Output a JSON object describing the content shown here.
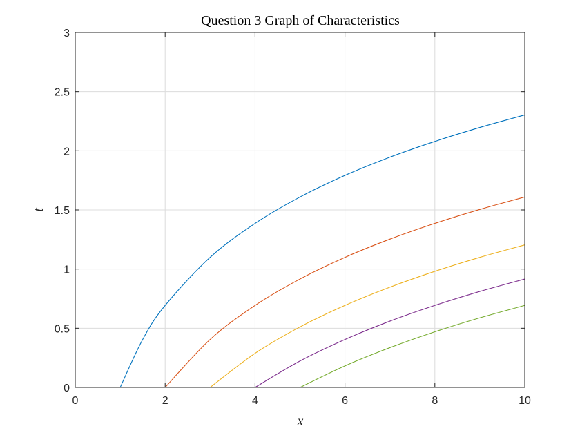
{
  "chart_data": {
    "type": "line",
    "title": "Question 3 Graph of Characteristics",
    "xlabel": "x",
    "ylabel": "t",
    "xlim": [
      0,
      10
    ],
    "ylim": [
      0,
      3
    ],
    "xticks": [
      "0",
      "2",
      "4",
      "6",
      "8",
      "10"
    ],
    "yticks": [
      "0",
      "0.5",
      "1",
      "1.5",
      "2",
      "2.5",
      "3"
    ],
    "grid": true,
    "colors": [
      "#0072bd",
      "#d95319",
      "#edb120",
      "#7e2f8e",
      "#77ac30"
    ],
    "series": [
      {
        "x": [
          1,
          1.5,
          2,
          3,
          4,
          5,
          6,
          7,
          8,
          9,
          10
        ],
        "y": [
          0,
          0.405,
          0.693,
          1.099,
          1.386,
          1.609,
          1.792,
          1.946,
          2.079,
          2.197,
          2.303
        ]
      },
      {
        "x": [
          2,
          3,
          4,
          5,
          6,
          7,
          8,
          9,
          10
        ],
        "y": [
          0,
          0.405,
          0.693,
          0.916,
          1.099,
          1.253,
          1.386,
          1.504,
          1.609
        ]
      },
      {
        "x": [
          3,
          4,
          5,
          6,
          7,
          8,
          9,
          10
        ],
        "y": [
          0,
          0.288,
          0.511,
          0.693,
          0.847,
          0.981,
          1.099,
          1.204
        ]
      },
      {
        "x": [
          4,
          5,
          6,
          7,
          8,
          9,
          10
        ],
        "y": [
          0,
          0.223,
          0.405,
          0.56,
          0.693,
          0.811,
          0.916
        ]
      },
      {
        "x": [
          5,
          6,
          7,
          8,
          9,
          10
        ],
        "y": [
          0,
          0.182,
          0.336,
          0.47,
          0.588,
          0.693
        ]
      }
    ]
  }
}
